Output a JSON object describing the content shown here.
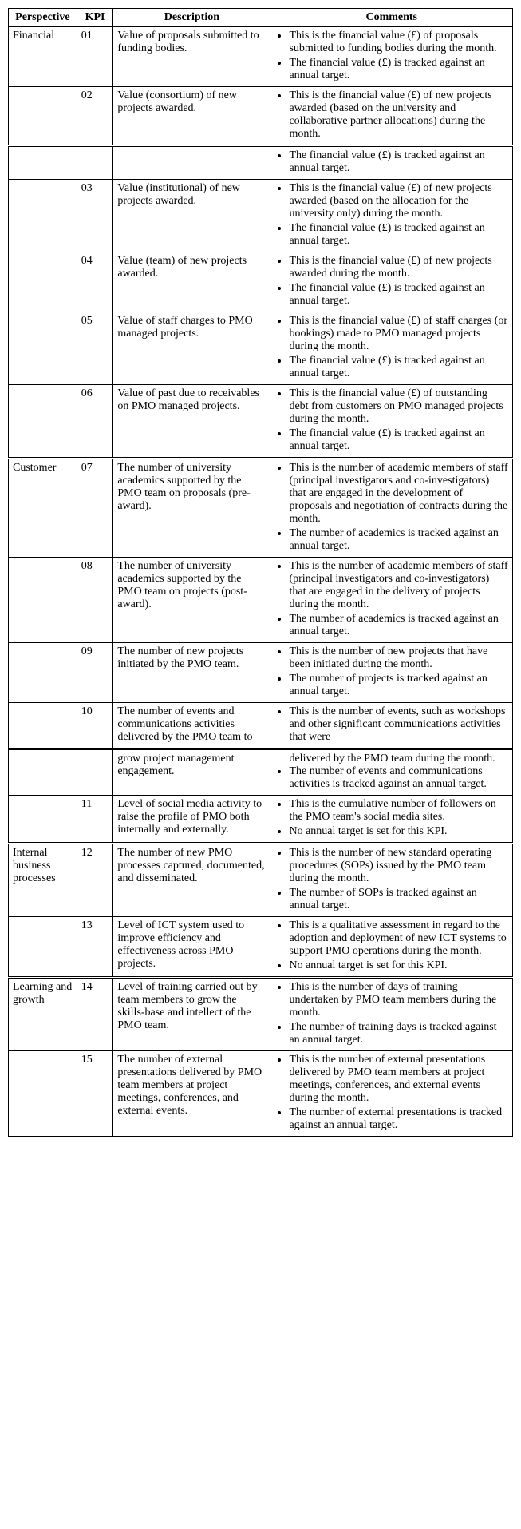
{
  "headers": {
    "perspective": "Perspective",
    "kpi": "KPI",
    "description": "Description",
    "comments": "Comments"
  },
  "rows": [
    {
      "perspective": "Financial",
      "kpi": "01",
      "desc": "Value of proposals submitted to funding bodies.",
      "comments": [
        "This is the financial value (£) of proposals submitted to funding bodies during the month.",
        "The financial value (£) is tracked against an annual target."
      ]
    },
    {
      "perspective": "",
      "kpi": "02",
      "desc": "Value (consortium) of new projects awarded.",
      "comments": [
        "This is the financial value (£) of new projects awarded (based on the university and collaborative partner allocations) during the month."
      ]
    },
    {
      "perspective": "",
      "kpi": "",
      "desc": "",
      "comments": [
        "The financial value (£) is tracked against an annual target."
      ],
      "break": true
    },
    {
      "perspective": "",
      "kpi": "03",
      "desc": "Value (institutional) of new projects awarded.",
      "comments": [
        "This is the financial value (£) of new projects awarded (based on the allocation for the university only) during the month.",
        "The financial value (£) is tracked against an annual target."
      ]
    },
    {
      "perspective": "",
      "kpi": "04",
      "desc": "Value (team) of new projects awarded.",
      "comments": [
        "This is the financial value (£) of new projects awarded during the month.",
        "The financial value (£) is tracked against an annual target."
      ]
    },
    {
      "perspective": "",
      "kpi": "05",
      "desc": "Value of staff charges to PMO managed projects.",
      "comments": [
        "This is the financial value (£) of staff charges (or bookings) made to PMO managed projects during the month.",
        "The financial value (£) is tracked against an annual target."
      ]
    },
    {
      "perspective": "",
      "kpi": "06",
      "desc": "Value of past due to receivables on PMO managed projects.",
      "comments": [
        "This is the financial value (£) of outstanding debt from customers on PMO managed projects during the month.",
        "The financial value (£) is tracked against an annual target."
      ]
    },
    {
      "perspective": "Customer",
      "kpi": "07",
      "desc": "The number of university academics supported by the PMO team on proposals (pre-award).",
      "comments": [
        "This is the number of academic members of staff (principal investigators and co-investigators) that are engaged in the development of proposals and negotiation of contracts during the month.",
        "The number of academics is tracked against an annual target."
      ],
      "break": true
    },
    {
      "perspective": "",
      "kpi": "08",
      "desc": "The number of university academics supported by the PMO team on projects (post-award).",
      "comments": [
        "This is the number of academic members of staff (principal investigators and co-investigators) that are engaged in the delivery of projects during the month.",
        "The number of academics is tracked against an annual target."
      ]
    },
    {
      "perspective": "",
      "kpi": "09",
      "desc": "The number of new projects initiated by the PMO team.",
      "comments": [
        "This is the number of new projects that have been initiated during the month.",
        "The number of projects is tracked against an annual target."
      ]
    },
    {
      "perspective": "",
      "kpi": "10",
      "desc": "The number of events and communications activities delivered by the PMO team to",
      "comments": [
        "This is the number of events, such as workshops and other significant communications activities that were"
      ]
    },
    {
      "perspective": "",
      "kpi": "",
      "desc": "grow project management engagement.",
      "comments_raw": "delivered by the PMO team during the month.",
      "comments": [
        "The number of events and communications activities is tracked against an annual target."
      ],
      "break": true
    },
    {
      "perspective": "",
      "kpi": "11",
      "desc": "Level of social media activity to raise the profile of PMO both internally and externally.",
      "comments": [
        "This is the cumulative number of followers on the PMO team's social media sites.",
        "No annual target is set for this KPI."
      ]
    },
    {
      "perspective": "Internal business processes",
      "kpi": "12",
      "desc": "The number of new PMO processes captured, documented, and disseminated.",
      "comments": [
        "This is the number of new standard operating procedures (SOPs) issued by the PMO team during the month.",
        "The number of SOPs is tracked against an annual target."
      ],
      "break": true
    },
    {
      "perspective": "",
      "kpi": "13",
      "desc": "Level of ICT system used to improve efficiency and effectiveness across PMO projects.",
      "comments": [
        "This is a qualitative assessment in regard to the adoption and deployment of new ICT systems to support PMO operations during the month.",
        "No annual target is set for this KPI."
      ]
    },
    {
      "perspective": "Learning and growth",
      "kpi": "14",
      "desc": "Level of training carried out by team members to grow the skills-base and intellect of the PMO team.",
      "comments": [
        "This is the number of days of training undertaken by PMO team members during the month.",
        "The number of training days is tracked against an annual target."
      ],
      "break": true
    },
    {
      "perspective": "",
      "kpi": "15",
      "desc": "The number of external presentations delivered by PMO team members at project meetings, conferences, and external events.",
      "comments": [
        "This is the number of external presentations delivered by PMO team members at project meetings, conferences, and external events during the month.",
        "The number of external presentations is tracked against an annual target."
      ]
    }
  ]
}
